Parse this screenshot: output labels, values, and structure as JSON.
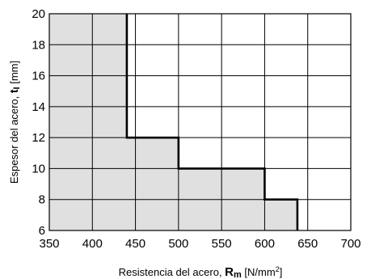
{
  "chart_data": {
    "type": "area",
    "title": "",
    "xlabel": {
      "prefix": "Resistencia del acero, ",
      "symbol": "R",
      "subscript": "m",
      "unit_open": " [N/mm",
      "unit_sup": "2",
      "unit_close": "]"
    },
    "ylabel": {
      "prefix": "Espesor del acero, ",
      "symbol": "t",
      "subscript": "I",
      "unit": " [mm]"
    },
    "xlim": [
      350,
      700
    ],
    "ylim": [
      6,
      20
    ],
    "xticks": [
      350,
      400,
      450,
      500,
      550,
      600,
      650,
      700
    ],
    "yticks": [
      6,
      8,
      10,
      12,
      14,
      16,
      18,
      20
    ],
    "grid": true,
    "fill_color": "#e0e0e0",
    "line_color": "#000000",
    "series": [
      {
        "points": [
          {
            "x": 440,
            "y": 20
          },
          {
            "x": 440,
            "y": 12
          },
          {
            "x": 500,
            "y": 12
          },
          {
            "x": 500,
            "y": 10
          },
          {
            "x": 600,
            "y": 10
          },
          {
            "x": 600,
            "y": 8
          },
          {
            "x": 638,
            "y": 8
          },
          {
            "x": 638,
            "y": 6
          }
        ]
      }
    ]
  }
}
